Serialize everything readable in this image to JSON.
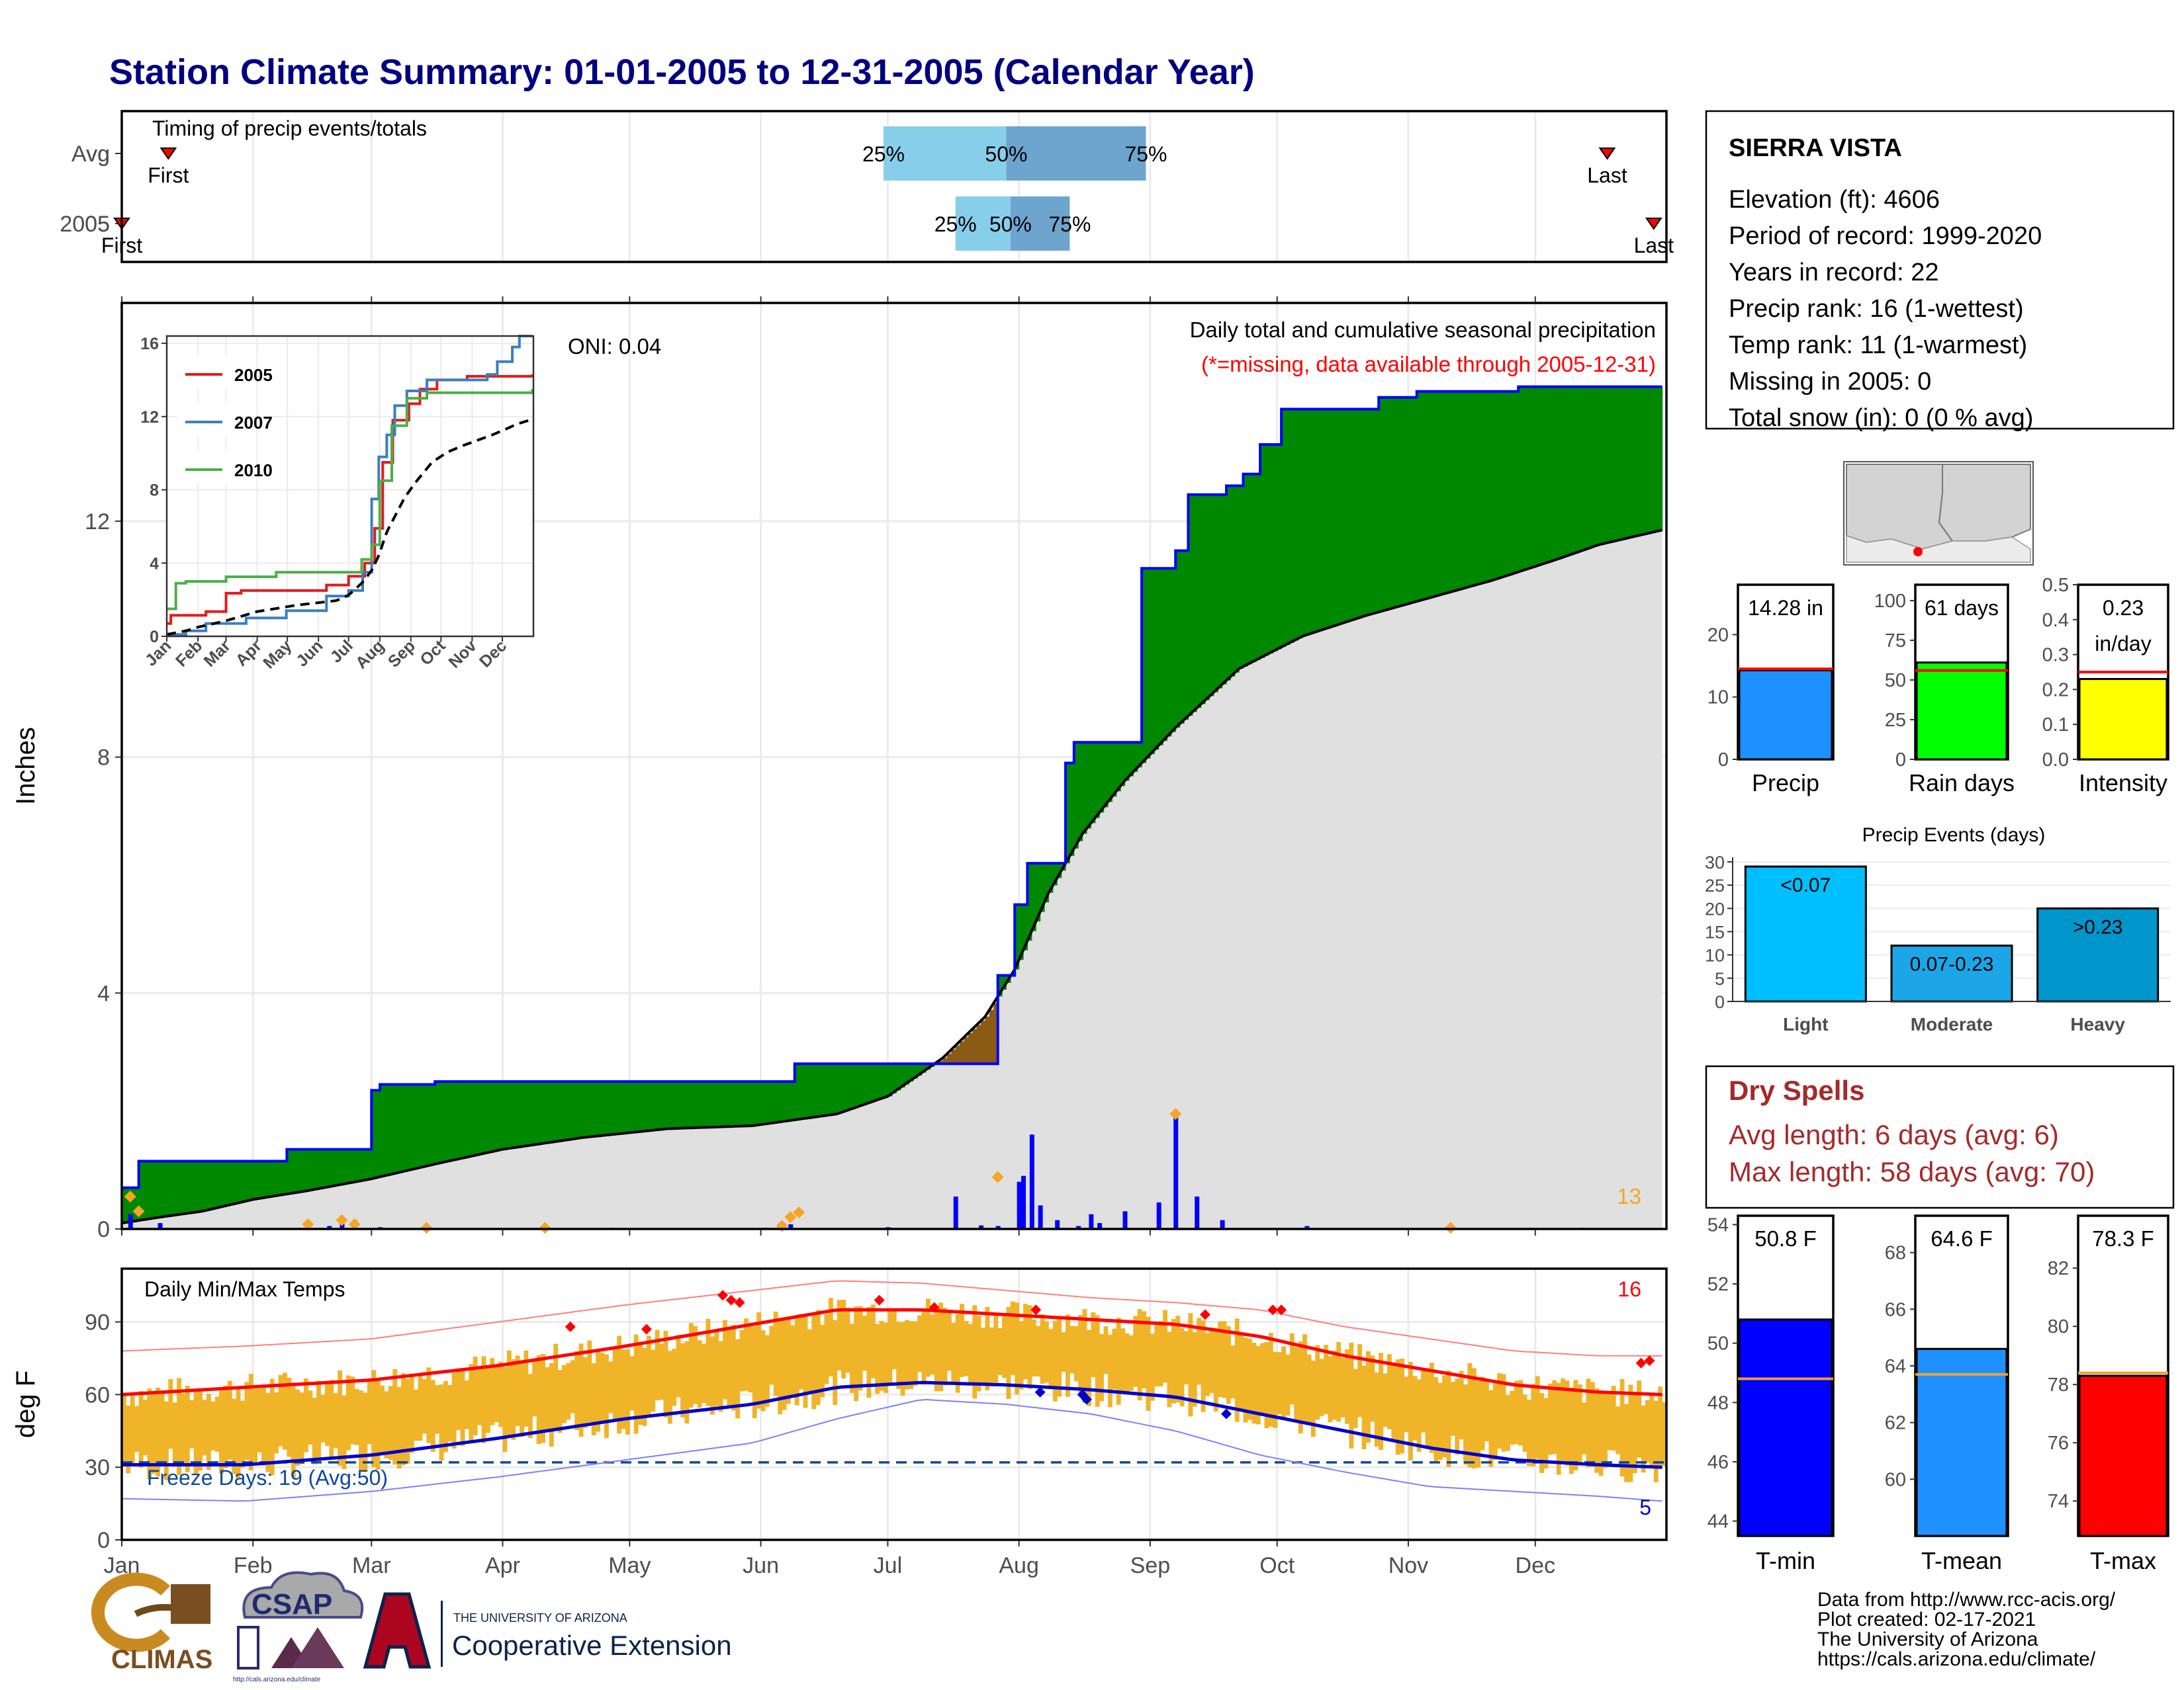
{
  "title": "Station Climate Summary: 01-01-2005 to 12-31-2005 (Calendar Year)",
  "months": [
    "Jan",
    "Feb",
    "Mar",
    "Apr",
    "May",
    "Jun",
    "Jul",
    "Aug",
    "Sep",
    "Oct",
    "Nov",
    "Dec"
  ],
  "timing": {
    "title": "Timing of precip events/totals",
    "row_labels": [
      "Avg",
      "2005"
    ],
    "first_label": "First",
    "last_label": "Last",
    "q25": "25%",
    "q50": "50%",
    "q75": "75%",
    "avg": {
      "first_day": 12,
      "last_day": 352,
      "q25_day": 181,
      "q50_day": 210,
      "q75_day": 243
    },
    "y2005": {
      "first_day": 1,
      "last_day": 363,
      "q25_day": 198,
      "q50_day": 211,
      "q75_day": 225
    }
  },
  "station": {
    "name": "SIERRA VISTA",
    "lines": [
      "Elevation (ft): 4606",
      "Period of record: 1999-2020",
      "Years in record: 22",
      "Precip rank: 16 (1-wettest)",
      "Temp rank: 11 (1-warmest)",
      "Missing in 2005: 0",
      "Total snow (in): 0 (0 % avg)"
    ]
  },
  "main_precip": {
    "ylabel": "Inches",
    "oni": "ONI: 0.04",
    "desc": "Daily total and cumulative seasonal precipitation",
    "missing_note": "(*=missing, data available through 2005-12-31)",
    "count": "13",
    "yticks": [
      0,
      4,
      8,
      12
    ],
    "ylim": [
      0,
      15.7
    ]
  },
  "chart_data": [
    {
      "type": "area",
      "name": "cumulative-precip",
      "x_unit": "day of year",
      "ylabel": "Inches",
      "ylim": [
        0,
        15.7
      ],
      "series": [
        {
          "name": "2005",
          "x": [
            1,
            5,
            15,
            40,
            60,
            62,
            75,
            112,
            160,
            228,
            285,
            332,
            365
          ],
          "values": [
            0.7,
            1.15,
            1.15,
            1.35,
            2.35,
            2.45,
            2.5,
            2.5,
            2.8,
            3.28,
            3.28,
            3.28,
            3.28
          ]
        },
        {
          "name": "2005b",
          "x": [
            208,
            212,
            215,
            224,
            226,
            230,
            242,
            250,
            253,
            262,
            266,
            270,
            275,
            280,
            283,
            291,
            298,
            301,
            307,
            313,
            331,
            363
          ],
          "values": [
            4.3,
            5.5,
            6.2,
            7.9,
            8.25,
            8.25,
            11.2,
            11.5,
            12.45,
            12.6,
            12.8,
            13.3,
            13.9,
            13.9,
            13.9,
            13.9,
            14.1,
            14.1,
            14.2,
            14.2,
            14.28,
            14.28
          ]
        },
        {
          "name": "Avg",
          "x": [
            1,
            10,
            20,
            32,
            45,
            60,
            75,
            91,
            110,
            130,
            150,
            170,
            182,
            195,
            205,
            212,
            220,
            228,
            238,
            250,
            265,
            280,
            295,
            310,
            325,
            340,
            350,
            365
          ],
          "values": [
            0.1,
            0.2,
            0.3,
            0.5,
            0.65,
            0.85,
            1.1,
            1.35,
            1.55,
            1.7,
            1.75,
            1.95,
            2.25,
            2.9,
            3.6,
            4.4,
            5.7,
            6.7,
            7.6,
            8.5,
            9.5,
            10.05,
            10.4,
            10.7,
            11.0,
            11.35,
            11.6,
            11.85
          ]
        }
      ]
    },
    {
      "type": "bar",
      "name": "daily-precip",
      "x_unit": "day of year",
      "x": [
        3,
        10,
        45,
        50,
        53,
        56,
        62,
        101,
        117,
        153,
        157,
        159,
        182,
        198,
        204,
        208,
        213,
        214,
        216,
        218,
        222,
        227,
        230,
        232,
        238,
        246,
        250,
        255,
        261,
        281,
        315,
        346
      ],
      "values": [
        0.25,
        0.1,
        0.04,
        0.05,
        0.2,
        0.15,
        0.03,
        0.02,
        0.02,
        0.02,
        0.04,
        0.08,
        0.03,
        0.55,
        0.06,
        0.05,
        0.8,
        0.9,
        1.6,
        0.4,
        0.15,
        0.05,
        0.25,
        0.1,
        0.3,
        0.45,
        1.9,
        0.55,
        0.15,
        0.05,
        0.02,
        0.02
      ]
    },
    {
      "type": "line",
      "name": "inset-cumulative",
      "x_unit": "day of year",
      "yticks": [
        0,
        4,
        8,
        12,
        16
      ],
      "ylim": [
        0,
        16.4
      ],
      "series": [
        {
          "name": "2005",
          "color": "#e31a1c",
          "x": [
            1,
            5,
            40,
            60,
            75,
            112,
            160,
            182,
            198,
            208,
            216,
            226,
            242,
            253,
            270,
            300,
            365
          ],
          "values": [
            0.7,
            1.15,
            1.35,
            2.35,
            2.5,
            2.5,
            2.8,
            3.28,
            4.0,
            5.9,
            9.5,
            11.8,
            12.7,
            13.5,
            14.0,
            14.2,
            14.3
          ]
        },
        {
          "name": "2007",
          "color": "#3a7fc1",
          "x": [
            1,
            20,
            40,
            80,
            120,
            160,
            182,
            196,
            205,
            212,
            220,
            228,
            240,
            260,
            300,
            320,
            330,
            345,
            352,
            365
          ],
          "values": [
            0.1,
            0.3,
            0.7,
            1.0,
            1.4,
            2.2,
            2.5,
            3.5,
            7.5,
            9.8,
            11.0,
            12.6,
            13.4,
            14.0,
            14.0,
            14.3,
            15.0,
            15.8,
            16.4,
            16.4
          ]
        },
        {
          "name": "2010",
          "color": "#4daf4a",
          "x": [
            1,
            10,
            20,
            60,
            110,
            160,
            182,
            195,
            205,
            213,
            225,
            240,
            260,
            280,
            365
          ],
          "values": [
            1.5,
            2.9,
            3.0,
            3.25,
            3.5,
            3.5,
            3.5,
            4.2,
            5.0,
            8.5,
            11.5,
            13.0,
            13.3,
            13.3,
            13.5
          ]
        },
        {
          "name": "Avg",
          "color": "#000000",
          "x": [
            1,
            20,
            32,
            60,
            91,
            130,
            170,
            182,
            195,
            205,
            212,
            220,
            238,
            250,
            265,
            280,
            295,
            310,
            325,
            340,
            350,
            365
          ],
          "values": [
            0.1,
            0.3,
            0.5,
            0.85,
            1.35,
            1.7,
            1.95,
            2.25,
            2.9,
            3.6,
            4.4,
            5.7,
            7.6,
            8.5,
            9.5,
            10.05,
            10.4,
            10.7,
            11.0,
            11.35,
            11.6,
            11.85
          ]
        }
      ],
      "legend": [
        "2005",
        "2007",
        "2010"
      ]
    },
    {
      "type": "bar",
      "name": "summary-bars",
      "charts": [
        {
          "label": "Precip",
          "value_text": "14.28 in",
          "value": 14.28,
          "avg": 14.5,
          "ylim": [
            0,
            28
          ],
          "yticks": [
            0,
            10,
            20
          ],
          "color": "#1e90ff"
        },
        {
          "label": "Rain days",
          "value_text": "61 days",
          "value": 61,
          "avg": 56,
          "ylim": [
            0,
            110
          ],
          "yticks": [
            0,
            25,
            50,
            75,
            100
          ],
          "color": "#00ff00"
        },
        {
          "label": "Intensity",
          "value_text": "0.23",
          "value_text2": "in/day",
          "value": 0.23,
          "avg": 0.25,
          "ylim": [
            0,
            0.5
          ],
          "yticks": [
            0.0,
            0.1,
            0.2,
            0.3,
            0.4,
            0.5
          ],
          "color": "#ffff00"
        }
      ]
    },
    {
      "type": "bar",
      "name": "precip-events",
      "title": "Precip Events (days)",
      "categories": [
        "Light",
        "Moderate",
        "Heavy"
      ],
      "bar_labels": [
        "<0.07",
        "0.07-0.23",
        ">0.23"
      ],
      "values": [
        29,
        12,
        20
      ],
      "ylim": [
        0,
        31
      ],
      "yticks": [
        0,
        5,
        10,
        15,
        20,
        25,
        30
      ],
      "colors": [
        "#00bfff",
        "#1ca6e8",
        "#0096cc"
      ]
    },
    {
      "type": "line",
      "name": "daily-temps",
      "title": "Daily Min/Max Temps",
      "ylabel": "deg F",
      "ylim": [
        0,
        112
      ],
      "yticks": [
        0,
        30,
        60,
        90
      ],
      "freeze_line": 32,
      "avg_max": {
        "x": [
          1,
          30,
          60,
          90,
          120,
          150,
          170,
          190,
          210,
          230,
          250,
          270,
          290,
          310,
          330,
          350,
          365
        ],
        "values": [
          60,
          63,
          66,
          72,
          80,
          89,
          95,
          95,
          93,
          91,
          89,
          84,
          76,
          70,
          64,
          61,
          60
        ]
      },
      "avg_min": {
        "x": [
          1,
          30,
          60,
          90,
          120,
          150,
          170,
          190,
          210,
          230,
          250,
          270,
          290,
          310,
          330,
          350,
          365
        ],
        "values": [
          31,
          31,
          35,
          42,
          50,
          56,
          63,
          65,
          64,
          62,
          59,
          52,
          45,
          38,
          33,
          31,
          30
        ]
      },
      "rec_max": {
        "x": [
          1,
          30,
          60,
          90,
          120,
          150,
          170,
          190,
          210,
          230,
          250,
          270,
          290,
          310,
          330,
          350,
          365
        ],
        "values": [
          78,
          80,
          83,
          90,
          97,
          103,
          107,
          106,
          103,
          100,
          98,
          95,
          88,
          83,
          78,
          76,
          76
        ]
      },
      "rec_min": {
        "x": [
          1,
          30,
          60,
          90,
          120,
          150,
          170,
          190,
          210,
          230,
          250,
          270,
          290,
          310,
          330,
          350,
          365
        ],
        "values": [
          17,
          16,
          20,
          26,
          33,
          40,
          50,
          58,
          56,
          52,
          45,
          35,
          28,
          22,
          20,
          18,
          16
        ]
      }
    },
    {
      "type": "bar",
      "name": "temp-summary",
      "charts": [
        {
          "label": "T-min",
          "value_text": "50.8 F",
          "value": 50.8,
          "avg": 48.8,
          "ylim": [
            43.5,
            54.3
          ],
          "yticks": [
            44,
            46,
            48,
            50,
            52,
            54
          ],
          "color": "#0000ff"
        },
        {
          "label": "T-mean",
          "value_text": "64.6 F",
          "value": 64.6,
          "avg": 63.7,
          "ylim": [
            58.0,
            69.3
          ],
          "yticks": [
            60,
            62,
            64,
            66,
            68
          ],
          "color": "#1e90ff"
        },
        {
          "label": "T-max",
          "value_text": "78.3 F",
          "value": 78.3,
          "avg": 78.4,
          "ylim": [
            72.8,
            83.8
          ],
          "yticks": [
            74,
            76,
            78,
            80,
            82
          ],
          "color": "#ff0000"
        }
      ]
    }
  ],
  "temps_panel": {
    "title": "Daily Min/Max Temps",
    "ylabel": "deg F",
    "freeze": "Freeze Days: 19 (Avg:50)",
    "hot_count": "16",
    "cold_count": "5"
  },
  "dry_spells": {
    "title": "Dry Spells",
    "avg": "Avg length: 6 days (avg: 6)",
    "max": "Max length: 58 days (avg: 70)"
  },
  "footer": {
    "lines": [
      "Data from http://www.rcc-acis.org/",
      "Plot created: 02-17-2021",
      "The University of Arizona",
      "https://cals.arizona.edu/climate/"
    ],
    "climas": "CLIMAS",
    "csap": "CSAP",
    "csap_url": "http://cals.arizona.edu/climate",
    "ua_small": "THE UNIVERSITY OF ARIZONA",
    "ua_large": "Cooperative Extension"
  },
  "colors": {
    "title": "#000080",
    "green": "#008800",
    "gray_area": "#e0e0e0",
    "brown": "#8b5a14",
    "blue_line": "#0000ff",
    "orange_bar": "#f0b429",
    "red_line": "#ff0000",
    "dry": "#a52a2a"
  }
}
